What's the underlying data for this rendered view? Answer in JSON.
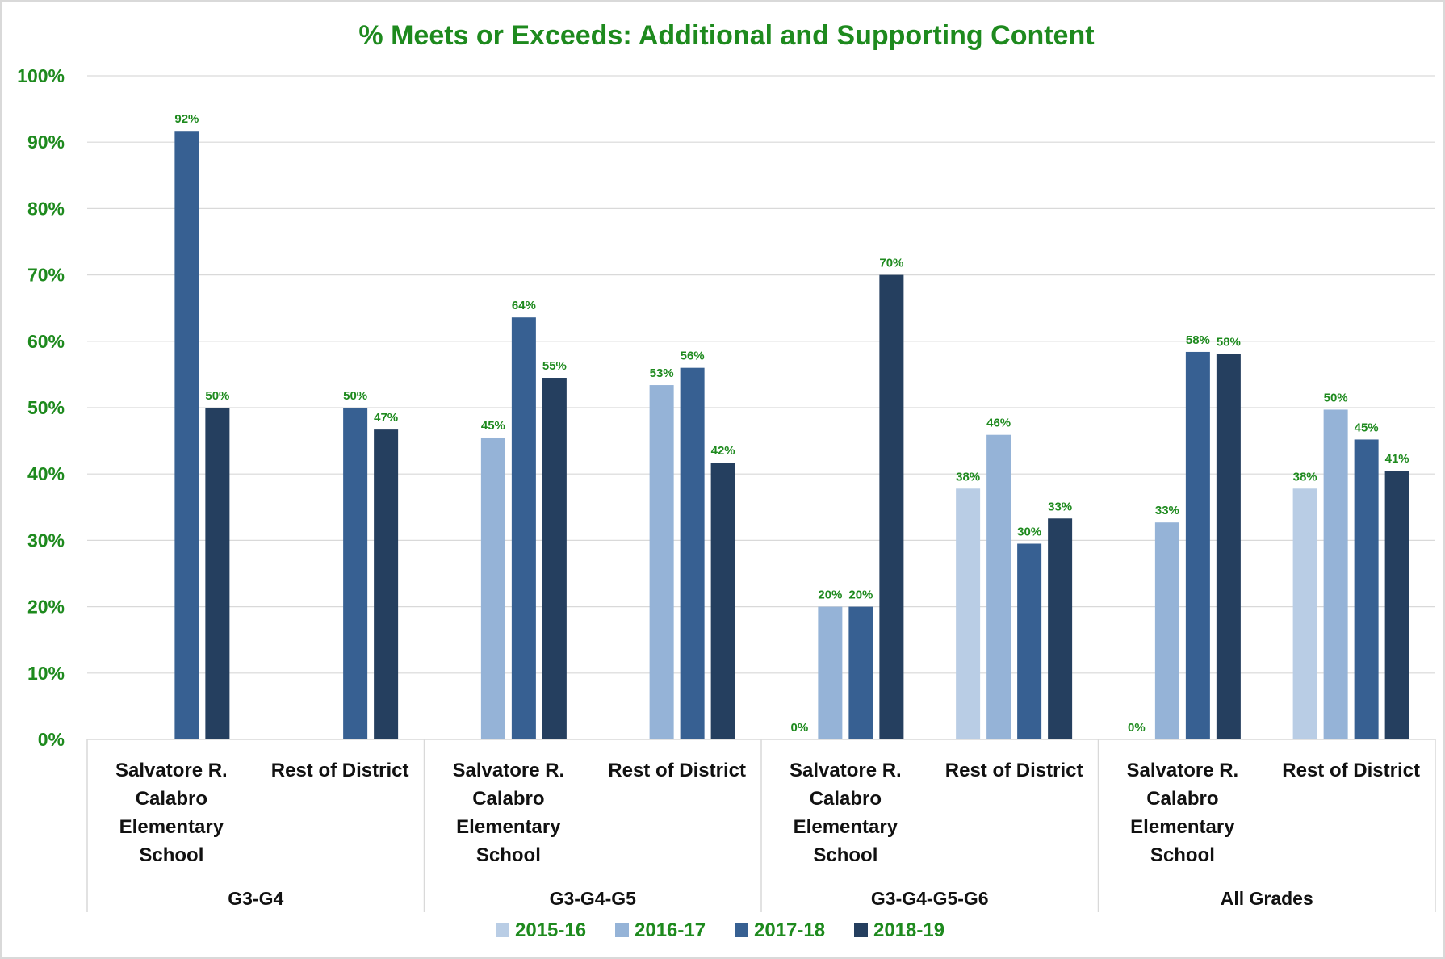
{
  "chart_data": {
    "type": "bar",
    "title": "% Meets or Exceeds: Additional and Supporting Content",
    "ylim": [
      0,
      100
    ],
    "y_ticks": [
      "0%",
      "10%",
      "20%",
      "30%",
      "40%",
      "50%",
      "60%",
      "70%",
      "80%",
      "90%",
      "100%"
    ],
    "grid": true,
    "legend_position": "bottom",
    "groups": [
      {
        "label": "G3-G4",
        "categories": [
          "Salvatore R. Calabro Elementary School",
          "Rest of District"
        ]
      },
      {
        "label": "G3-G4-G5",
        "categories": [
          "Salvatore R. Calabro Elementary School",
          "Rest of District"
        ]
      },
      {
        "label": "G3-G4-G5-G6",
        "categories": [
          "Salvatore R. Calabro Elementary School",
          "Rest of District"
        ]
      },
      {
        "label": "All Grades",
        "categories": [
          "Salvatore R. Calabro Elementary School",
          "Rest of District"
        ]
      }
    ],
    "categories": [
      "Salvatore R. Calabro Elementary School",
      "Rest of District",
      "Salvatore R. Calabro Elementary School",
      "Rest of District",
      "Salvatore R. Calabro Elementary School",
      "Rest of District",
      "Salvatore R. Calabro Elementary School",
      "Rest of District"
    ],
    "series": [
      {
        "name": "2015-16",
        "color": "#B9CDE5",
        "values": [
          null,
          null,
          null,
          null,
          0,
          37.8,
          0,
          37.8
        ],
        "labels": [
          "",
          "",
          "",
          "",
          "0%",
          "38%",
          "0%",
          "38%"
        ]
      },
      {
        "name": "2016-17",
        "color": "#95B3D7",
        "values": [
          null,
          null,
          45.5,
          53.4,
          20,
          45.9,
          32.7,
          49.7
        ],
        "labels": [
          "",
          "",
          "45%",
          "53%",
          "20%",
          "46%",
          "33%",
          "50%"
        ]
      },
      {
        "name": "2017-18",
        "color": "#376092",
        "values": [
          91.7,
          50,
          63.6,
          56,
          20,
          29.5,
          58.4,
          45.2
        ],
        "labels": [
          "92%",
          "50%",
          "64%",
          "56%",
          "20%",
          "30%",
          "58%",
          "45%"
        ]
      },
      {
        "name": "2018-19",
        "color": "#253F5F",
        "values": [
          50,
          46.7,
          54.5,
          41.7,
          70,
          33.3,
          58.1,
          40.5
        ],
        "labels": [
          "50%",
          "47%",
          "55%",
          "42%",
          "70%",
          "33%",
          "58%",
          "41%"
        ]
      }
    ]
  }
}
